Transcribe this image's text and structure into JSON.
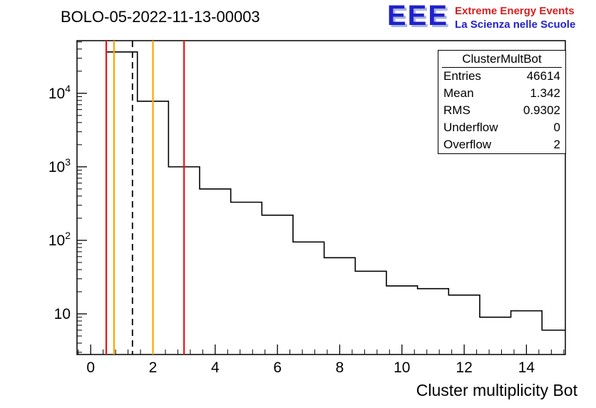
{
  "header": {
    "title": "BOLO-05-2022-11-13-00003"
  },
  "logo": {
    "letters": "EEE",
    "line1": "Extreme Energy Events",
    "line2": "La Scienza nelle Scuole"
  },
  "stats_box": {
    "header": "ClusterMultBot",
    "rows": [
      {
        "label": "Entries",
        "value": "46614"
      },
      {
        "label": "Mean",
        "value": "1.342"
      },
      {
        "label": "RMS",
        "value": "0.9302"
      },
      {
        "label": "Underflow",
        "value": "0"
      },
      {
        "label": "Overflow",
        "value": "2"
      }
    ]
  },
  "chart_data": {
    "type": "bar",
    "subtype": "step-histogram",
    "title": "ClusterMultBot",
    "xlabel": "Cluster multiplicity Bot",
    "ylabel": "",
    "y_scale": "log",
    "grid": false,
    "xlim": [
      -0.44,
      15.25
    ],
    "ylim": [
      2.8,
      52000
    ],
    "x_ticks": [
      0,
      2,
      4,
      6,
      8,
      10,
      12,
      14
    ],
    "y_ticks": [
      10,
      100,
      1000,
      10000
    ],
    "bin_width": 1,
    "bin_centers": [
      1,
      2,
      3,
      4,
      5,
      6,
      7,
      8,
      9,
      10,
      11,
      12,
      13,
      14,
      15
    ],
    "counts": [
      36500,
      7800,
      1000,
      500,
      330,
      220,
      95,
      58,
      38,
      24,
      22,
      18,
      9,
      11,
      6
    ],
    "marker_lines": {
      "mean_dashed_x": 1.342,
      "red_x": [
        0.5,
        3.0
      ],
      "orange_x": [
        0.75,
        2.0
      ]
    },
    "colors": {
      "histogram": "#000000",
      "red_line": "#ee1111",
      "orange_line": "#ffa500",
      "mean_line": "#000000",
      "frame": "#000000"
    }
  }
}
